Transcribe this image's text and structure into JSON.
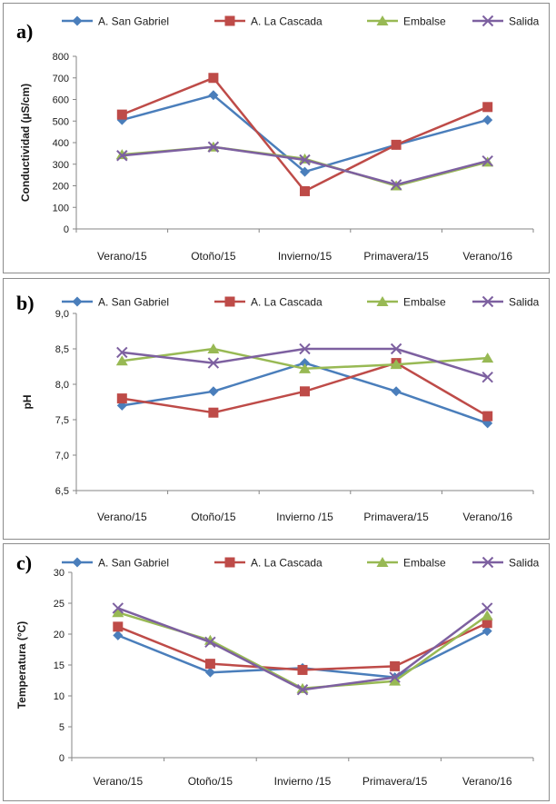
{
  "chart_data": [
    {
      "type": "line",
      "panel_label": "a)",
      "ylabel": "Conductividad (µS/cm)",
      "xlabel": "",
      "categories": [
        "Verano/15",
        "Otoño/15",
        "Invierno/15",
        "Primavera/15",
        "Verano/16"
      ],
      "ylim": [
        0,
        800
      ],
      "yticks": [
        0,
        100,
        200,
        300,
        400,
        500,
        600,
        700,
        800
      ],
      "ytick_labels": [
        "0",
        "100",
        "200",
        "300",
        "400",
        "500",
        "600",
        "700",
        "800"
      ],
      "grid": false,
      "legend": "top",
      "series": [
        {
          "name": "A. San Gabriel",
          "values": [
            505,
            620,
            265,
            390,
            505
          ]
        },
        {
          "name": "A. La Cascada",
          "values": [
            530,
            700,
            175,
            390,
            565
          ]
        },
        {
          "name": "Embalse",
          "values": [
            345,
            380,
            325,
            200,
            310
          ]
        },
        {
          "name": "Salida",
          "values": [
            340,
            380,
            320,
            205,
            315
          ]
        }
      ]
    },
    {
      "type": "line",
      "panel_label": "b)",
      "ylabel": "pH",
      "xlabel": "",
      "categories": [
        "Verano/15",
        "Otoño/15",
        "Invierno /15",
        "Primavera/15",
        "Verano/16"
      ],
      "ylim": [
        6.5,
        9.0
      ],
      "yticks": [
        6.5,
        7.0,
        7.5,
        8.0,
        8.5,
        9.0
      ],
      "ytick_labels": [
        "6,5",
        "7,0",
        "7,5",
        "8,0",
        "8,5",
        "9,0"
      ],
      "grid": false,
      "legend": "top",
      "series": [
        {
          "name": "A. San Gabriel",
          "values": [
            7.7,
            7.9,
            8.3,
            7.9,
            7.45
          ]
        },
        {
          "name": "A. La Cascada",
          "values": [
            7.8,
            7.6,
            7.9,
            8.3,
            7.55
          ]
        },
        {
          "name": "Embalse",
          "values": [
            8.33,
            8.5,
            8.22,
            8.28,
            8.37
          ]
        },
        {
          "name": "Salida",
          "values": [
            8.45,
            8.3,
            8.5,
            8.5,
            8.1
          ]
        }
      ]
    },
    {
      "type": "line",
      "panel_label": "c)",
      "ylabel": "Temperatura (°C)",
      "xlabel": "",
      "categories": [
        "Verano/15",
        "Otoño/15",
        "Invierno /15",
        "Primavera/15",
        "Verano/16"
      ],
      "ylim": [
        0,
        30
      ],
      "yticks": [
        0,
        5,
        10,
        15,
        20,
        25,
        30
      ],
      "ytick_labels": [
        "0",
        "5",
        "10",
        "15",
        "20",
        "25",
        "30"
      ],
      "grid": false,
      "legend": "top",
      "series": [
        {
          "name": "A. San Gabriel",
          "values": [
            19.8,
            13.8,
            14.5,
            13.0,
            20.5
          ]
        },
        {
          "name": "A. La Cascada",
          "values": [
            21.2,
            15.2,
            14.2,
            14.8,
            21.8
          ]
        },
        {
          "name": "Embalse",
          "values": [
            23.5,
            19.0,
            11.2,
            12.4,
            23.0
          ]
        },
        {
          "name": "Salida",
          "values": [
            24.2,
            18.7,
            11.0,
            13.0,
            24.2
          ]
        }
      ]
    }
  ],
  "series_style": [
    {
      "color": "#4a7ebb",
      "marker": "diamond-icon"
    },
    {
      "color": "#be4b48",
      "marker": "square-icon"
    },
    {
      "color": "#98b954",
      "marker": "triangle-icon"
    },
    {
      "color": "#7d60a0",
      "marker": "x-icon"
    }
  ]
}
